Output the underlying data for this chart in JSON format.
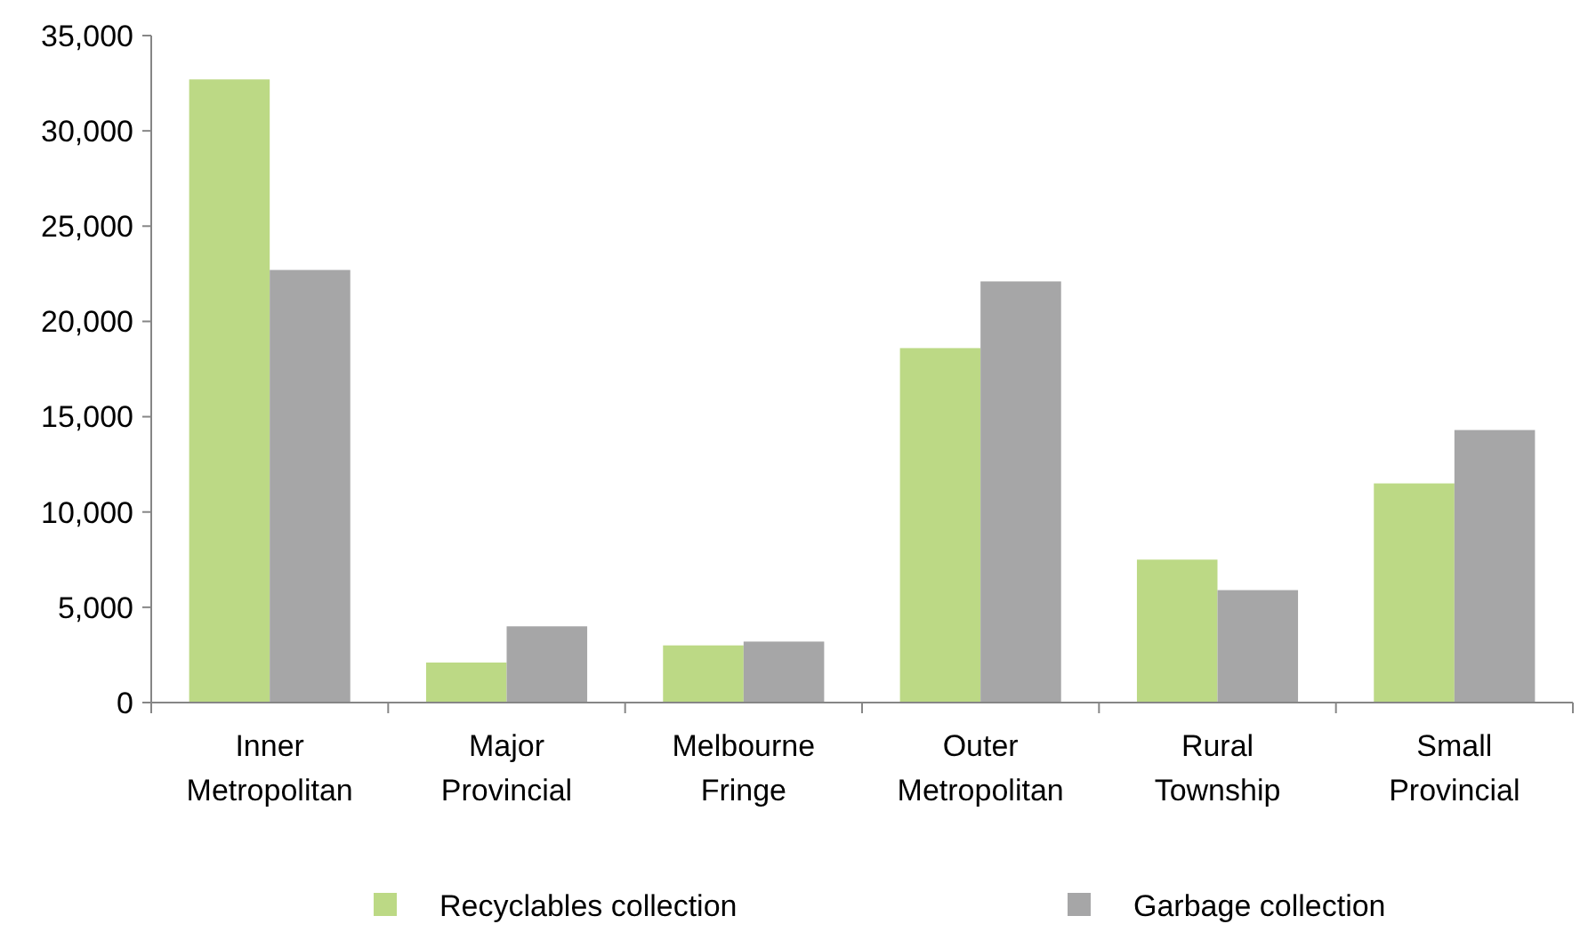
{
  "chart_data": {
    "type": "bar",
    "categories": [
      "Inner Metropolitan",
      "Major Provincial",
      "Melbourne Fringe",
      "Outer Metropolitan",
      "Rural Township",
      "Small Provincial"
    ],
    "series": [
      {
        "name": "Recyclables collection",
        "color": "#bcd985",
        "values": [
          32700,
          2100,
          3000,
          18600,
          7500,
          11500
        ]
      },
      {
        "name": "Garbage collection",
        "color": "#a6a6a7",
        "values": [
          22700,
          4000,
          3200,
          22100,
          5900,
          14300
        ]
      }
    ],
    "ylim": [
      0,
      35000
    ],
    "yticks": [
      {
        "value": 0,
        "label": "0"
      },
      {
        "value": 5000,
        "label": "5,000"
      },
      {
        "value": 10000,
        "label": "10,000"
      },
      {
        "value": 15000,
        "label": "15,000"
      },
      {
        "value": 20000,
        "label": "20,000"
      },
      {
        "value": 25000,
        "label": "25,000"
      },
      {
        "value": 30000,
        "label": "30,000"
      },
      {
        "value": 35000,
        "label": "35,000"
      }
    ],
    "grid": false,
    "legend": "bottom"
  }
}
